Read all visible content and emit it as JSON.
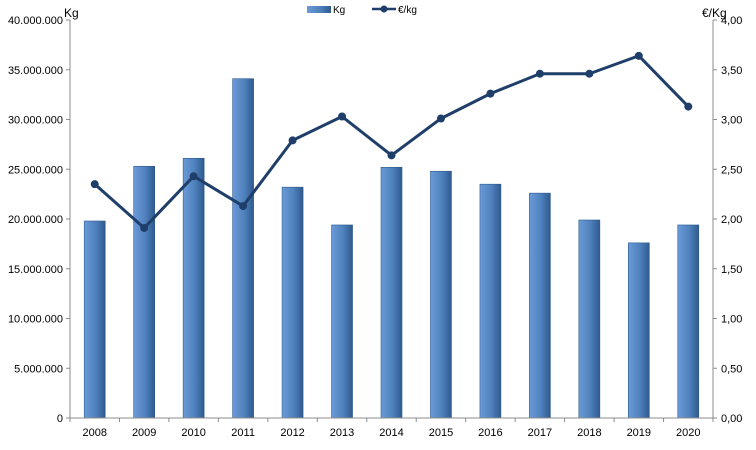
{
  "chart_data": {
    "type": "bar",
    "categories": [
      "2008",
      "2009",
      "2010",
      "2011",
      "2012",
      "2013",
      "2014",
      "2015",
      "2016",
      "2017",
      "2018",
      "2019",
      "2020"
    ],
    "series": [
      {
        "name": "Kg",
        "type": "bar",
        "axis": "left",
        "values": [
          19800000,
          25300000,
          26100000,
          34100000,
          23200000,
          19400000,
          25200000,
          24800000,
          23500000,
          22600000,
          19900000,
          17600000,
          19400000
        ]
      },
      {
        "name": "€/kg",
        "type": "line",
        "axis": "right",
        "values": [
          2.35,
          1.91,
          2.43,
          2.13,
          2.79,
          3.03,
          2.64,
          3.01,
          3.26,
          3.46,
          3.46,
          3.64,
          3.13
        ]
      }
    ],
    "ylabel": "Kg",
    "y2label": "€/Kg",
    "ylim": [
      0,
      40000000
    ],
    "y2lim": [
      0,
      4
    ],
    "yticks": [
      "0",
      "5.000.000",
      "10.000.000",
      "15.000.000",
      "20.000.000",
      "25.000.000",
      "30.000.000",
      "35.000.000",
      "40.000.000"
    ],
    "y2ticks": [
      "0,00",
      "0,50",
      "1,00",
      "1,50",
      "2,00",
      "2,50",
      "3,00",
      "3,50",
      "4,00"
    ],
    "grid": false,
    "legend": "top-center",
    "colors": {
      "bar": "#4f81bd",
      "bar_edge": "#2f5a8e",
      "line": "#1f3f6a"
    }
  }
}
